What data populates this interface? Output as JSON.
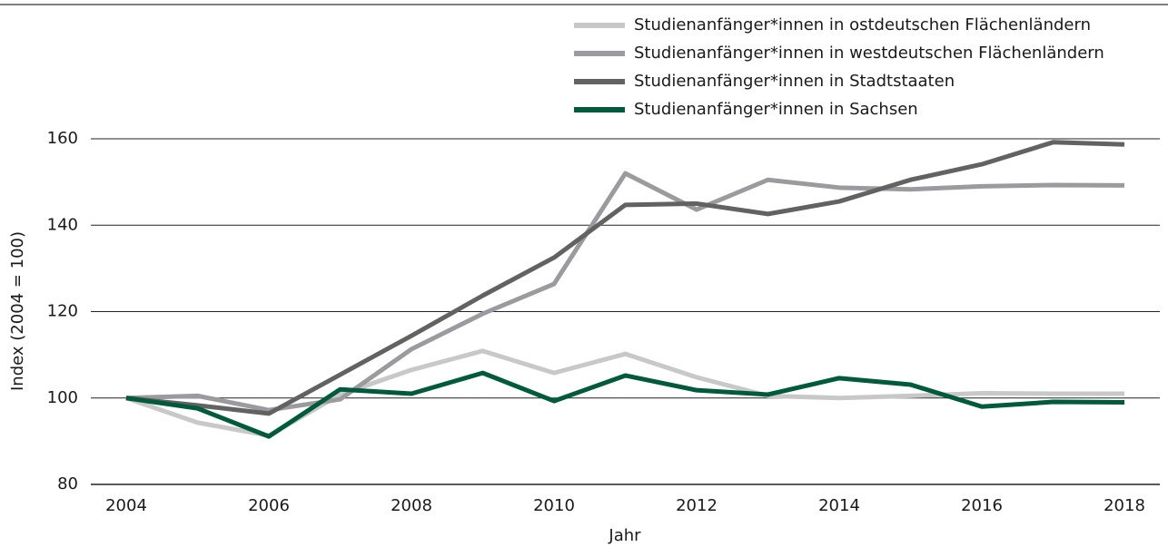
{
  "chart_data": {
    "type": "line",
    "x_label": "Jahr",
    "y_label": "Index (2004 = 100)",
    "x": [
      2004,
      2005,
      2006,
      2007,
      2008,
      2009,
      2010,
      2011,
      2012,
      2013,
      2014,
      2015,
      2016,
      2017,
      2018
    ],
    "series": [
      {
        "name": "Studienanfänger*innen in ostdeutschen Flächenländern",
        "color": "#c8c8c8",
        "values": [
          100,
          94.3,
          91.3,
          100.8,
          106.5,
          110.9,
          105.8,
          110.2,
          104.8,
          100.5,
          100,
          100.5,
          101.1,
          101,
          101
        ]
      },
      {
        "name": "Studienanfänger*innen in westdeutschen Flächenländern",
        "color": "#9b9b9f",
        "values": [
          100,
          100.5,
          97.2,
          99.7,
          111.3,
          119.5,
          126.4,
          152,
          143.6,
          150.5,
          148.7,
          148.3,
          149,
          149.3,
          149.2
        ]
      },
      {
        "name": "Studienanfänger*innen in Stadtstaaten",
        "color": "#626262",
        "values": [
          100,
          98.3,
          96.4,
          105.4,
          114.4,
          123.7,
          132.5,
          144.7,
          145,
          142.6,
          145.5,
          150.5,
          154.1,
          159.2,
          158.7
        ]
      },
      {
        "name": "Studienanfänger*innen in Sachsen",
        "color": "#005a3c",
        "values": [
          100,
          97.6,
          91.1,
          102,
          101,
          105.8,
          99.3,
          105.2,
          101.8,
          100.8,
          104.6,
          103.1,
          98,
          99.1,
          99
        ]
      }
    ],
    "xlim": [
      2004,
      2018
    ],
    "xticks": [
      2004,
      2006,
      2008,
      2010,
      2012,
      2014,
      2016,
      2018
    ],
    "ylim": [
      80,
      160
    ],
    "yticks": [
      80,
      100,
      120,
      140,
      160
    ],
    "grid": true,
    "legend": "top-right"
  }
}
